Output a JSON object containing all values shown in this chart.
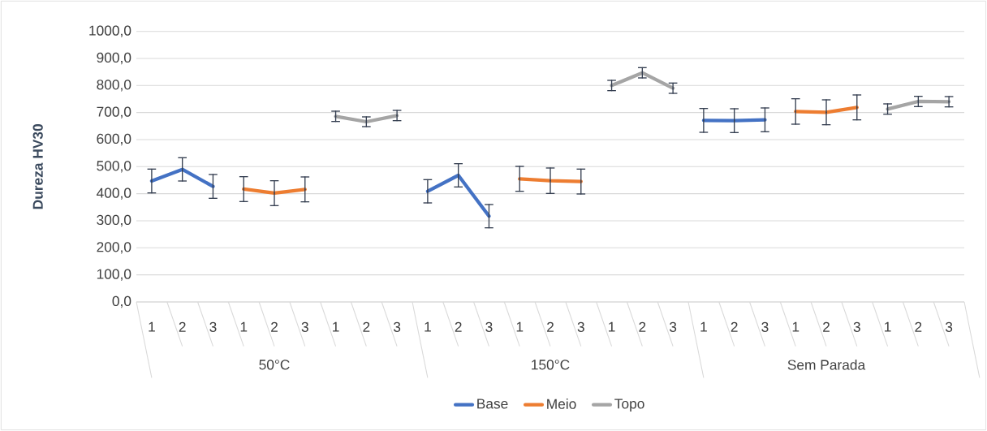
{
  "chart_data": {
    "type": "line",
    "ylabel": "Dureza HV30",
    "categories": [
      "1",
      "2",
      "3",
      "1",
      "2",
      "3",
      "1",
      "2",
      "3",
      "1",
      "2",
      "3",
      "1",
      "2",
      "3",
      "1",
      "2",
      "3",
      "1",
      "2",
      "3",
      "1",
      "2",
      "3",
      "1",
      "2",
      "3"
    ],
    "annotations": [
      "50°C",
      "150°C",
      "Sem Parada"
    ],
    "series": [
      {
        "name": "Base",
        "color": "#4472c4",
        "values": [
          447,
          490,
          427,
          null,
          null,
          null,
          null,
          null,
          null,
          409,
          468,
          317,
          null,
          null,
          null,
          null,
          null,
          null,
          671,
          670,
          673,
          null,
          null,
          null,
          null,
          null,
          null
        ],
        "errors": [
          44,
          43,
          44,
          null,
          null,
          null,
          null,
          null,
          null,
          43,
          43,
          43,
          null,
          null,
          null,
          null,
          null,
          null,
          44,
          44,
          44,
          null,
          null,
          null,
          null,
          null,
          null
        ]
      },
      {
        "name": "Meio",
        "color": "#ed7d31",
        "values": [
          null,
          null,
          null,
          417,
          402,
          416,
          null,
          null,
          null,
          null,
          null,
          null,
          455,
          448,
          445,
          null,
          null,
          null,
          null,
          null,
          null,
          704,
          701,
          719,
          null,
          null,
          null
        ],
        "errors": [
          null,
          null,
          null,
          46,
          46,
          46,
          null,
          null,
          null,
          null,
          null,
          null,
          46,
          47,
          46,
          null,
          null,
          null,
          null,
          null,
          null,
          47,
          46,
          46,
          null,
          null,
          null
        ]
      },
      {
        "name": "Topo",
        "color": "#a5a5a5",
        "values": [
          null,
          null,
          null,
          null,
          null,
          null,
          686,
          666,
          689,
          null,
          null,
          null,
          null,
          null,
          null,
          800,
          847,
          790,
          null,
          null,
          null,
          null,
          null,
          null,
          713,
          741,
          740
        ],
        "errors": [
          null,
          null,
          null,
          null,
          null,
          null,
          19,
          18,
          19,
          null,
          null,
          null,
          null,
          null,
          null,
          19,
          19,
          19,
          null,
          null,
          null,
          null,
          null,
          null,
          19,
          19,
          19
        ]
      }
    ],
    "ylim": [
      0,
      1000
    ],
    "yticks": [
      {
        "value": 0,
        "label": "0,0"
      },
      {
        "value": 100,
        "label": "100,0"
      },
      {
        "value": 200,
        "label": "200,0"
      },
      {
        "value": 300,
        "label": "300,0"
      },
      {
        "value": 400,
        "label": "400,0"
      },
      {
        "value": 500,
        "label": "500,0"
      },
      {
        "value": 600,
        "label": "600,0"
      },
      {
        "value": 700,
        "label": "700,0"
      },
      {
        "value": 800,
        "label": "800,0"
      },
      {
        "value": 900,
        "label": "900,0"
      },
      {
        "value": 1000,
        "label": "1000,0"
      }
    ],
    "grid": "y",
    "legend": "bottom",
    "line_style": "solid"
  }
}
